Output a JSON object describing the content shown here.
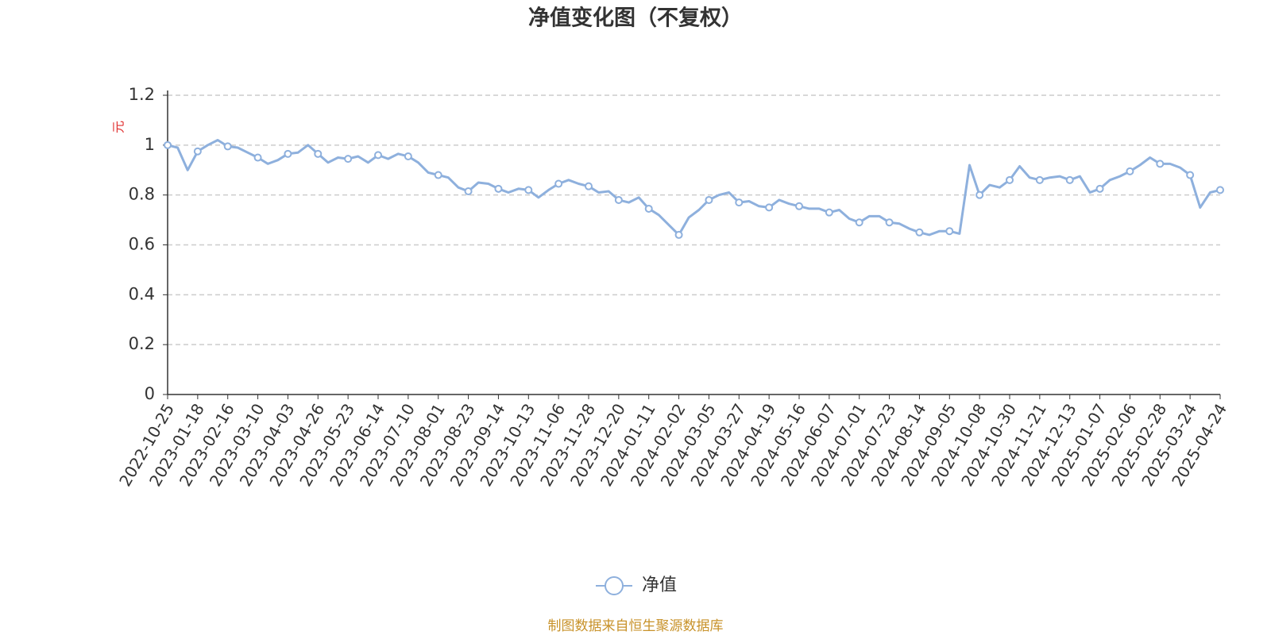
{
  "chart_data": {
    "type": "line",
    "title": "净值变化图（不复权）",
    "y_label": "元",
    "footer": "制图数据来自恒生聚源数据库",
    "categories": [
      "2022-10-25",
      null,
      null,
      "2023-01-18",
      null,
      null,
      "2023-02-16",
      null,
      null,
      "2023-03-10",
      null,
      null,
      "2023-04-03",
      null,
      null,
      "2023-04-26",
      null,
      null,
      "2023-05-23",
      null,
      null,
      "2023-06-14",
      null,
      null,
      "2023-07-10",
      null,
      null,
      "2023-08-01",
      null,
      null,
      "2023-08-23",
      null,
      null,
      "2023-09-14",
      null,
      null,
      "2023-10-13",
      null,
      null,
      "2023-11-06",
      null,
      null,
      "2023-11-28",
      null,
      null,
      "2023-12-20",
      null,
      null,
      "2024-01-11",
      null,
      null,
      "2024-02-02",
      null,
      null,
      "2024-03-05",
      null,
      null,
      "2024-03-27",
      null,
      null,
      "2024-04-19",
      null,
      null,
      "2024-05-16",
      null,
      null,
      "2024-06-07",
      null,
      null,
      "2024-07-01",
      null,
      null,
      "2024-07-23",
      null,
      null,
      "2024-08-14",
      null,
      null,
      "2024-09-05",
      null,
      null,
      "2024-10-08",
      null,
      null,
      "2024-10-30",
      null,
      null,
      "2024-11-21",
      null,
      null,
      "2024-12-13",
      null,
      null,
      "2025-01-07",
      null,
      null,
      "2025-02-06",
      null,
      null,
      "2025-02-28",
      null,
      null,
      "2025-03-24",
      null,
      null,
      "2025-04-24"
    ],
    "series": [
      {
        "name": "净值",
        "color": "#8eb0dd",
        "values": [
          1.0,
          0.99,
          0.9,
          0.975,
          1.0,
          1.02,
          0.995,
          0.99,
          0.97,
          0.95,
          0.925,
          0.94,
          0.965,
          0.97,
          1.0,
          0.965,
          0.93,
          0.95,
          0.945,
          0.955,
          0.93,
          0.96,
          0.945,
          0.965,
          0.955,
          0.93,
          0.89,
          0.88,
          0.87,
          0.83,
          0.815,
          0.85,
          0.845,
          0.825,
          0.81,
          0.825,
          0.82,
          0.79,
          0.82,
          0.845,
          0.86,
          0.845,
          0.835,
          0.81,
          0.815,
          0.78,
          0.77,
          0.79,
          0.745,
          0.72,
          0.68,
          0.64,
          0.71,
          0.74,
          0.78,
          0.8,
          0.81,
          0.77,
          0.775,
          0.755,
          0.75,
          0.78,
          0.765,
          0.755,
          0.745,
          0.745,
          0.73,
          0.74,
          0.705,
          0.69,
          0.715,
          0.715,
          0.69,
          0.685,
          0.665,
          0.65,
          0.64,
          0.655,
          0.655,
          0.645,
          0.92,
          0.8,
          0.84,
          0.83,
          0.86,
          0.915,
          0.87,
          0.86,
          0.87,
          0.875,
          0.86,
          0.875,
          0.81,
          0.825,
          0.86,
          0.875,
          0.895,
          0.92,
          0.95,
          0.925,
          0.925,
          0.91,
          0.88,
          0.75,
          0.81,
          0.82
        ]
      }
    ],
    "ylim": [
      0,
      1.2
    ],
    "yticks": [
      0,
      0.2,
      0.4,
      0.6,
      0.8,
      1,
      1.2
    ],
    "grid": true
  }
}
